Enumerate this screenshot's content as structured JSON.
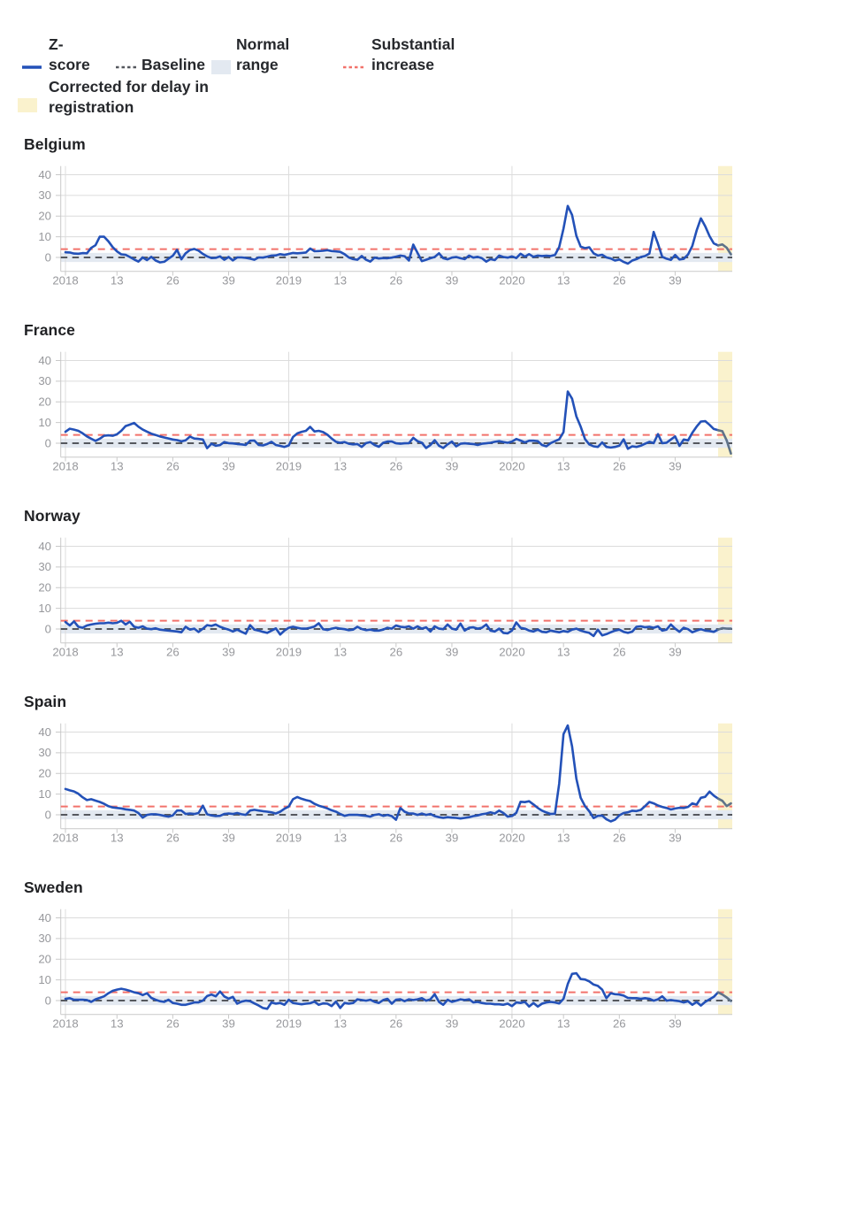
{
  "page": {
    "background": "#ffffff"
  },
  "legend": {
    "items": [
      {
        "id": "z-score",
        "swatch": "line",
        "color": "#2351b8",
        "label_lines": [
          "Z-",
          "score"
        ]
      },
      {
        "id": "baseline",
        "swatch": "dashed-line",
        "color": "#55585e",
        "label_lines": [
          "Baseline"
        ]
      },
      {
        "id": "normal-range",
        "swatch": "rect",
        "color": "#e3e9f1",
        "label_lines": [
          "Normal",
          "range"
        ]
      },
      {
        "id": "substantial-increase",
        "swatch": "dashed-line",
        "color": "#f2726b",
        "label_lines": [
          "Substantial",
          "increase"
        ]
      },
      {
        "id": "corrected-for-delay",
        "swatch": "rect",
        "color": "#faf2cd",
        "label_lines": [
          "Corrected for delay in",
          "registration"
        ]
      }
    ]
  },
  "colors": {
    "line_blue": "#2351b8",
    "line_corrected_gray": "#5f7389",
    "baseline_dash": "#55585e",
    "substantial_increase_red": "#f2726b",
    "normal_range_band": "#e3e9f1",
    "corrected_band_yellow": "#faf2cd",
    "gridline": "#dcdcdc",
    "axis": "#c9c9c9",
    "tick_label": "#97989c",
    "title_text": "#202124"
  },
  "chart_data": [
    {
      "type": "line",
      "title": "Belgium",
      "xlabel": "",
      "ylabel": "",
      "ylim": [
        -6.8,
        44.2
      ],
      "y_ticks": [
        0,
        10,
        20,
        30,
        40
      ],
      "x_ticks": [
        {
          "label": "2018",
          "week_index": 0
        },
        {
          "label": "13",
          "week_index": 12
        },
        {
          "label": "26",
          "week_index": 25
        },
        {
          "label": "39",
          "week_index": 38
        },
        {
          "label": "2019",
          "week_index": 52
        },
        {
          "label": "13",
          "week_index": 64
        },
        {
          "label": "26",
          "week_index": 77
        },
        {
          "label": "39",
          "week_index": 90
        },
        {
          "label": "2020",
          "week_index": 104
        },
        {
          "label": "13",
          "week_index": 116
        },
        {
          "label": "26",
          "week_index": 129
        },
        {
          "label": "39",
          "week_index": 142
        }
      ],
      "grid": true,
      "baseline": 0,
      "substantial_increase_level": 4,
      "normal_range": [
        -2.2,
        2.2
      ],
      "corrected_zone_start_index": 152,
      "series_name": "Z-score",
      "values": [
        2.5,
        2.4,
        1.9,
        1.8,
        2.1,
        2.0,
        4.6,
        5.9,
        10.0,
        10.0,
        7.8,
        5.0,
        2.9,
        1.5,
        1.3,
        0.2,
        -1.0,
        -2.0,
        0.0,
        -1.3,
        0.3,
        -1.5,
        -2.4,
        -2.1,
        -0.6,
        0.8,
        3.7,
        -0.9,
        2.0,
        3.6,
        4.1,
        3.3,
        1.7,
        0.5,
        -0.3,
        -0.2,
        0.5,
        -1.1,
        0.2,
        -1.4,
        0.0,
        0.0,
        -0.2,
        -0.6,
        -1.1,
        0.0,
        -0.1,
        0.4,
        0.9,
        1.0,
        1.6,
        1.2,
        1.7,
        2.2,
        2.0,
        2.2,
        2.4,
        4.3,
        3.0,
        3.1,
        3.2,
        3.5,
        3.1,
        2.9,
        2.7,
        1.6,
        0.0,
        -0.8,
        -1.1,
        0.7,
        -1.1,
        -2.0,
        -0.1,
        -0.5,
        -0.3,
        -0.4,
        -0.1,
        0.4,
        0.9,
        0.6,
        -1.5,
        6.2,
        2.2,
        -1.8,
        -1.1,
        -0.4,
        0.2,
        2.0,
        -0.4,
        -0.9,
        -0.1,
        0.2,
        -0.4,
        -0.8,
        0.9,
        -0.1,
        0.3,
        -0.4,
        -2.0,
        -0.8,
        -1.3,
        0.9,
        0.2,
        -0.1,
        0.5,
        -0.3,
        1.8,
        0.4,
        1.6,
        0.3,
        0.9,
        0.7,
        0.8,
        0.7,
        1.2,
        5.0,
        14.0,
        24.9,
        20.5,
        10.5,
        5.2,
        4.5,
        4.9,
        2.0,
        0.9,
        1.3,
        0.0,
        -0.5,
        -1.5,
        -1.0,
        -2.2,
        -3.0,
        -1.5,
        -0.8,
        0.2,
        0.7,
        1.9,
        12.3,
        6.6,
        0.3,
        -0.6,
        -1.2,
        1.2,
        -1.0,
        -0.7,
        1.4,
        5.5,
        13.0,
        18.9,
        15.1,
        10.3,
        6.8,
        5.8,
        6.3,
        4.7,
        1.5
      ]
    },
    {
      "type": "line",
      "title": "France",
      "xlabel": "",
      "ylabel": "",
      "ylim": [
        -6.8,
        44.2
      ],
      "y_ticks": [
        0,
        10,
        20,
        30,
        40
      ],
      "x_ticks": [
        {
          "label": "2018",
          "week_index": 0
        },
        {
          "label": "13",
          "week_index": 12
        },
        {
          "label": "26",
          "week_index": 25
        },
        {
          "label": "39",
          "week_index": 38
        },
        {
          "label": "2019",
          "week_index": 52
        },
        {
          "label": "13",
          "week_index": 64
        },
        {
          "label": "26",
          "week_index": 77
        },
        {
          "label": "39",
          "week_index": 90
        },
        {
          "label": "2020",
          "week_index": 104
        },
        {
          "label": "13",
          "week_index": 116
        },
        {
          "label": "26",
          "week_index": 129
        },
        {
          "label": "39",
          "week_index": 142
        }
      ],
      "grid": true,
      "baseline": 0,
      "substantial_increase_level": 4,
      "normal_range": [
        -2.2,
        2.2
      ],
      "corrected_zone_start_index": 152,
      "series_name": "Z-score",
      "values": [
        5.5,
        7.0,
        6.6,
        6.0,
        4.8,
        3.3,
        2.2,
        1.1,
        2.2,
        3.6,
        3.8,
        3.6,
        4.3,
        6.0,
        8.3,
        9.0,
        9.8,
        8.0,
        6.6,
        5.6,
        4.6,
        4.0,
        3.3,
        2.8,
        2.3,
        1.8,
        1.5,
        0.9,
        1.4,
        3.2,
        2.25,
        2.1,
        1.8,
        -2.4,
        -0.25,
        -1.2,
        -0.9,
        0.55,
        0.05,
        -0.1,
        -0.4,
        -0.55,
        -0.85,
        1.2,
        1.3,
        -0.85,
        -1.05,
        -0.4,
        0.7,
        -0.85,
        -1.3,
        -1.8,
        -1.05,
        3.0,
        4.75,
        5.5,
        6.0,
        7.9,
        5.7,
        6.0,
        5.4,
        4.1,
        2.25,
        0.7,
        0.2,
        0.55,
        -0.25,
        -0.55,
        -0.4,
        -1.8,
        0.05,
        0.55,
        -0.85,
        -1.7,
        0.2,
        0.8,
        0.8,
        -0.05,
        -0.25,
        -0.05,
        0.05,
        2.6,
        1.0,
        0.2,
        -2.3,
        -0.85,
        1.45,
        -1.2,
        -2.3,
        -0.55,
        0.8,
        -1.5,
        -0.25,
        -0.05,
        -0.25,
        -0.4,
        -0.85,
        -0.25,
        -0.05,
        0.2,
        0.7,
        1.0,
        0.55,
        0.2,
        0.8,
        2.05,
        1.3,
        0.4,
        1.2,
        1.2,
        1.0,
        -0.85,
        -1.5,
        0.05,
        1.0,
        1.9,
        5.4,
        25.0,
        21.5,
        13.0,
        8.0,
        2.0,
        -0.55,
        -1.5,
        -1.8,
        0.4,
        -1.8,
        -2.1,
        -1.8,
        -1.2,
        1.9,
        -2.7,
        -1.5,
        -1.8,
        -1.2,
        -0.25,
        0.7,
        0.05,
        4.4,
        0.0,
        0.25,
        1.8,
        3.3,
        -1.3,
        1.8,
        1.35,
        5.0,
        8.05,
        10.5,
        10.7,
        8.9,
        6.9,
        6.3,
        5.8,
        1.35,
        -5.0
      ]
    },
    {
      "type": "line",
      "title": "Norway",
      "xlabel": "",
      "ylabel": "",
      "ylim": [
        -6.8,
        44.2
      ],
      "y_ticks": [
        0,
        10,
        20,
        30,
        40
      ],
      "x_ticks": [
        {
          "label": "2018",
          "week_index": 0
        },
        {
          "label": "13",
          "week_index": 12
        },
        {
          "label": "26",
          "week_index": 25
        },
        {
          "label": "39",
          "week_index": 38
        },
        {
          "label": "2019",
          "week_index": 52
        },
        {
          "label": "13",
          "week_index": 64
        },
        {
          "label": "26",
          "week_index": 77
        },
        {
          "label": "39",
          "week_index": 90
        },
        {
          "label": "2020",
          "week_index": 104
        },
        {
          "label": "13",
          "week_index": 116
        },
        {
          "label": "26",
          "week_index": 129
        },
        {
          "label": "39",
          "week_index": 142
        }
      ],
      "grid": true,
      "baseline": 0,
      "substantial_increase_level": 4,
      "normal_range": [
        -2.2,
        2.2
      ],
      "corrected_zone_start_index": 152,
      "series_name": "Z-score",
      "values": [
        3.4,
        1.7,
        3.7,
        1.05,
        0.6,
        1.7,
        2.2,
        2.55,
        2.8,
        2.8,
        3.1,
        2.8,
        3.0,
        4.0,
        2.2,
        3.5,
        1.05,
        0.6,
        1.3,
        0.15,
        -0.1,
        0.35,
        -0.3,
        -0.55,
        -0.75,
        -1.0,
        -1.2,
        -1.6,
        1.05,
        -0.3,
        0.15,
        -1.45,
        0.15,
        1.9,
        1.5,
        2.2,
        1.05,
        0.35,
        -0.3,
        -1.2,
        -0.3,
        -1.35,
        -2.25,
        1.9,
        -0.3,
        -0.75,
        -1.35,
        -1.9,
        -0.75,
        0.3,
        -2.7,
        -0.75,
        0.6,
        1.05,
        0.6,
        0.15,
        0.15,
        0.6,
        1.2,
        2.8,
        -0.1,
        -0.45,
        0.15,
        0.6,
        0.15,
        -0.1,
        -0.55,
        -0.3,
        1.05,
        0.0,
        -0.55,
        -0.3,
        -0.75,
        -0.75,
        -0.3,
        0.6,
        0.15,
        1.7,
        1.05,
        0.8,
        1.3,
        0.15,
        1.3,
        0.15,
        0.8,
        -1.2,
        1.3,
        0.15,
        -0.1,
        2.2,
        0.15,
        -0.3,
        2.6,
        -0.75,
        0.6,
        0.8,
        0.15,
        0.6,
        2.2,
        -0.75,
        -1.2,
        0.15,
        -1.9,
        -2.1,
        -0.75,
        3.2,
        0.6,
        0.15,
        -0.75,
        -1.2,
        -0.3,
        -1.35,
        -1.6,
        -0.75,
        -1.2,
        -1.6,
        -1.0,
        -1.35,
        -0.3,
        0.15,
        -0.75,
        -1.35,
        -1.9,
        -3.4,
        -0.3,
        -3.1,
        -2.5,
        -1.6,
        -0.75,
        -0.3,
        -1.35,
        -1.9,
        -1.3,
        1.05,
        1.3,
        0.8,
        1.05,
        0.6,
        1.3,
        -0.75,
        -0.3,
        2.2,
        0.15,
        -1.35,
        0.6,
        -0.1,
        -1.6,
        -0.75,
        -0.1,
        -0.75,
        -1.0,
        -1.35,
        -0.3,
        0.4,
        0.15,
        0.15
      ]
    },
    {
      "type": "line",
      "title": "Spain",
      "xlabel": "",
      "ylabel": "",
      "ylim": [
        -6.8,
        44.2
      ],
      "y_ticks": [
        0,
        10,
        20,
        30,
        40
      ],
      "x_ticks": [
        {
          "label": "2018",
          "week_index": 0
        },
        {
          "label": "13",
          "week_index": 12
        },
        {
          "label": "26",
          "week_index": 25
        },
        {
          "label": "39",
          "week_index": 38
        },
        {
          "label": "2019",
          "week_index": 52
        },
        {
          "label": "13",
          "week_index": 64
        },
        {
          "label": "26",
          "week_index": 77
        },
        {
          "label": "39",
          "week_index": 90
        },
        {
          "label": "2020",
          "week_index": 104
        },
        {
          "label": "13",
          "week_index": 116
        },
        {
          "label": "26",
          "week_index": 129
        },
        {
          "label": "39",
          "week_index": 142
        }
      ],
      "grid": true,
      "baseline": 0,
      "substantial_increase_level": 4,
      "normal_range": [
        -2.2,
        2.2
      ],
      "corrected_zone_start_index": 152,
      "series_name": "Z-score",
      "values": [
        12.5,
        11.8,
        11.3,
        10.2,
        8.45,
        7.1,
        7.55,
        6.85,
        6.2,
        5.3,
        4.15,
        3.55,
        3.3,
        3.1,
        2.65,
        2.4,
        2.05,
        0.85,
        -1.35,
        -0.05,
        0.25,
        0.25,
        -0.05,
        -0.5,
        -0.9,
        -0.3,
        2.05,
        2.05,
        0.4,
        0.6,
        0.4,
        0.85,
        4.4,
        0.25,
        -0.3,
        -0.65,
        -0.5,
        0.4,
        0.6,
        0.4,
        0.85,
        0.25,
        -0.05,
        2.05,
        2.4,
        2.05,
        1.75,
        1.5,
        1.15,
        0.6,
        1.5,
        2.9,
        4.0,
        7.55,
        8.6,
        7.75,
        7.1,
        6.65,
        5.3,
        4.4,
        3.8,
        3.1,
        2.2,
        1.5,
        0.4,
        -0.5,
        -0.05,
        -0.05,
        -0.05,
        -0.3,
        -0.5,
        -0.9,
        -0.05,
        0.25,
        -0.5,
        -0.05,
        -0.65,
        -2.4,
        3.3,
        1.5,
        0.6,
        0.6,
        -0.05,
        0.6,
        -0.05,
        0.4,
        -0.65,
        -1.15,
        -1.5,
        -1.15,
        -1.35,
        -1.5,
        -1.8,
        -1.5,
        -1.15,
        -0.65,
        -0.3,
        0.25,
        0.6,
        1.15,
        0.6,
        2.05,
        0.85,
        -0.9,
        -0.6,
        0.95,
        6.3,
        6.1,
        6.55,
        5.0,
        3.3,
        2.0,
        1.1,
        0.4,
        0.5,
        15.0,
        39.0,
        43.2,
        33.0,
        17.5,
        8.2,
        4.2,
        1.7,
        -1.6,
        -0.5,
        -0.4,
        -2.2,
        -3.2,
        -2.4,
        -0.25,
        0.85,
        1.2,
        1.95,
        1.8,
        2.35,
        4.2,
        6.2,
        5.5,
        4.5,
        3.8,
        3.3,
        2.55,
        3.05,
        3.4,
        3.3,
        3.8,
        5.5,
        4.9,
        8.2,
        8.7,
        11.2,
        9.3,
        7.85,
        6.75,
        4.2,
        5.5
      ]
    },
    {
      "type": "line",
      "title": "Sweden",
      "xlabel": "",
      "ylabel": "",
      "ylim": [
        -6.8,
        44.2
      ],
      "y_ticks": [
        0,
        10,
        20,
        30,
        40
      ],
      "x_ticks": [
        {
          "label": "2018",
          "week_index": 0
        },
        {
          "label": "13",
          "week_index": 12
        },
        {
          "label": "26",
          "week_index": 25
        },
        {
          "label": "39",
          "week_index": 38
        },
        {
          "label": "2019",
          "week_index": 52
        },
        {
          "label": "13",
          "week_index": 64
        },
        {
          "label": "26",
          "week_index": 77
        },
        {
          "label": "39",
          "week_index": 90
        },
        {
          "label": "2020",
          "week_index": 104
        },
        {
          "label": "13",
          "week_index": 116
        },
        {
          "label": "26",
          "week_index": 129
        },
        {
          "label": "39",
          "week_index": 142
        }
      ],
      "grid": true,
      "baseline": 0,
      "substantial_increase_level": 4,
      "normal_range": [
        -2.2,
        2.2
      ],
      "corrected_zone_start_index": 152,
      "series_name": "Z-score",
      "values": [
        0.85,
        1.15,
        0.4,
        0.4,
        0.4,
        0.25,
        -0.65,
        0.6,
        1.3,
        2.05,
        3.55,
        4.7,
        5.3,
        5.75,
        5.3,
        4.7,
        4.0,
        3.55,
        2.65,
        3.55,
        1.3,
        0.4,
        -0.3,
        -0.65,
        0.4,
        -1.15,
        -1.5,
        -2.05,
        -2.05,
        -1.5,
        -0.9,
        -0.9,
        -0.05,
        2.2,
        2.9,
        2.05,
        4.4,
        2.0,
        0.9,
        1.8,
        -1.5,
        -0.5,
        -0.05,
        -0.3,
        -1.35,
        -2.4,
        -3.6,
        -4.0,
        -0.9,
        -1.5,
        -1.15,
        -2.05,
        0.4,
        -1.15,
        -1.5,
        -1.8,
        -1.5,
        -1.3,
        -0.5,
        -2.05,
        -1.35,
        -1.5,
        -2.65,
        -0.5,
        -3.6,
        -1.15,
        -1.5,
        -1.15,
        0.6,
        0.25,
        -0.05,
        0.4,
        -0.65,
        -1.15,
        0.25,
        0.85,
        -1.5,
        0.4,
        0.6,
        -0.3,
        0.6,
        0.25,
        0.6,
        1.15,
        -0.05,
        0.6,
        3.1,
        -0.65,
        -2.05,
        0.4,
        -0.65,
        -0.05,
        0.6,
        0.25,
        0.6,
        -0.9,
        -0.65,
        -1.15,
        -1.5,
        -1.5,
        -1.8,
        -1.8,
        -2.05,
        -1.5,
        -2.65,
        -0.9,
        -1.15,
        -0.65,
        -2.9,
        -1.15,
        -2.9,
        -1.5,
        -0.9,
        -0.65,
        -0.9,
        -1.35,
        0.85,
        8.0,
        12.9,
        13.2,
        10.4,
        10.2,
        9.3,
        7.75,
        7.1,
        5.3,
        1.15,
        3.55,
        3.1,
        2.9,
        2.4,
        1.3,
        1.15,
        1.15,
        0.85,
        1.15,
        0.85,
        -0.05,
        0.6,
        2.05,
        -0.05,
        0.25,
        -0.05,
        -0.3,
        -0.9,
        -0.3,
        -2.05,
        -0.65,
        -2.4,
        -0.65,
        0.6,
        1.8,
        4.0,
        2.9,
        1.5,
        -0.2
      ]
    }
  ]
}
